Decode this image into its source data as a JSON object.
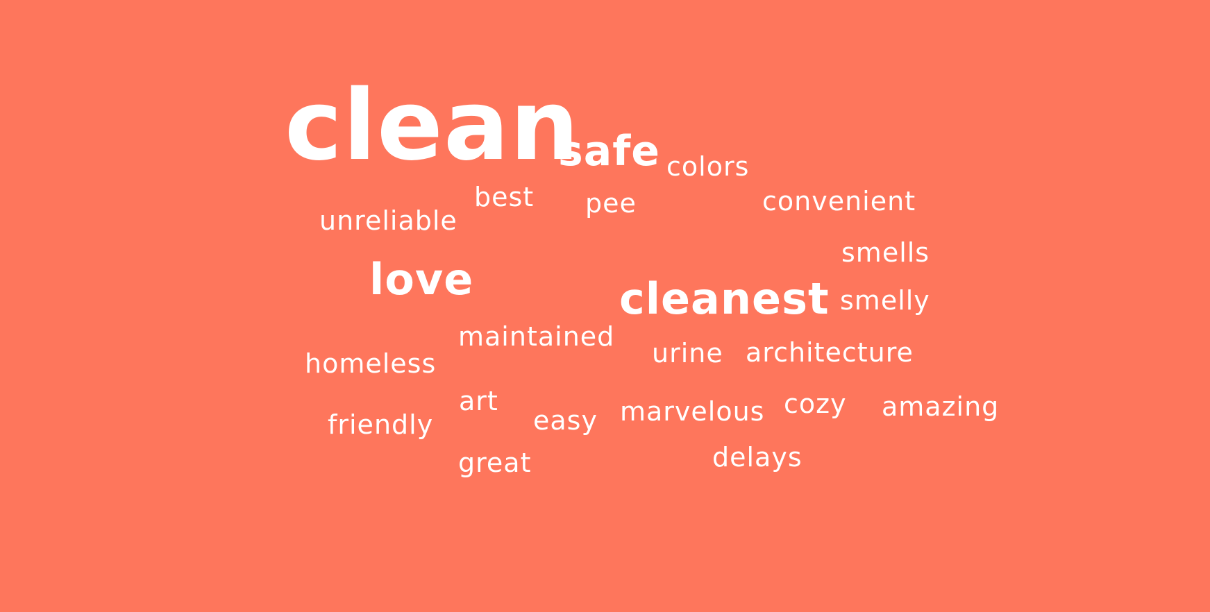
{
  "background_color": "#fe765c",
  "text_color": "#ffffff",
  "words": {
    "clean": "clean",
    "safe": "safe",
    "colors": "colors",
    "best": "best",
    "pee": "pee",
    "convenient": "convenient",
    "unreliable": "unreliable",
    "smells": "smells",
    "love": "love",
    "cleanest": "cleanest",
    "smelly": "smelly",
    "maintained": "maintained",
    "urine": "urine",
    "architecture": "architecture",
    "homeless": "homeless",
    "art": "art",
    "easy": "easy",
    "marvelous": "marvelous",
    "cozy": "cozy",
    "amazing": "amazing",
    "friendly": "friendly",
    "great": "great",
    "delays": "delays"
  }
}
